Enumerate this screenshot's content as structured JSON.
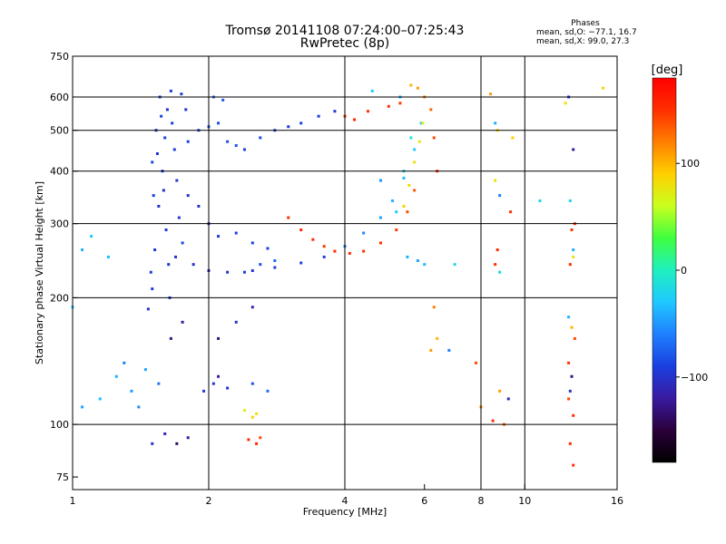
{
  "header": {
    "title_line1": "Tromsø 20141108 07:24:00–07:25:43",
    "title_line2": "RwPretec (8p)"
  },
  "phase_box": {
    "title": "Phases",
    "o_line": "mean, sd,O: −77.1, 16.7",
    "x_line": "mean, sd,X:  99.0, 27.3"
  },
  "colorbar": {
    "label": "[deg]",
    "ticks": [
      {
        "value": 100,
        "label": "100"
      },
      {
        "value": 0,
        "label": "0"
      },
      {
        "value": -100,
        "label": "−100"
      }
    ],
    "range": [
      -180,
      180
    ],
    "colormap": [
      "#000000",
      "#2a003a",
      "#3a1aa0",
      "#1a3fe0",
      "#1f7fff",
      "#1fc8ff",
      "#1ff0c0",
      "#3fff3f",
      "#c8ff1f",
      "#ffd000",
      "#ff7f00",
      "#ff2f00",
      "#ff0000"
    ]
  },
  "chart_data": {
    "type": "scatter",
    "title": "Tromsø 20141108 07:24:00–07:25:43",
    "subtitle": "RwPretec (8p)",
    "xlabel": "Frequency [MHz]",
    "ylabel": "Stationary phase Virtual Height [km]",
    "xscale": "log",
    "yscale": "log",
    "xlim": [
      1,
      16
    ],
    "ylim": [
      70,
      750
    ],
    "xticks": [
      {
        "value": 1,
        "label": "1"
      },
      {
        "value": 2,
        "label": "2"
      },
      {
        "value": 4,
        "label": "4"
      },
      {
        "value": 6,
        "label": "6"
      },
      {
        "value": 8,
        "label": "8"
      },
      {
        "value": 10,
        "label": "10"
      },
      {
        "value": 16,
        "label": "16"
      }
    ],
    "yticks": [
      {
        "value": 75,
        "label": "75"
      },
      {
        "value": 100,
        "label": "100"
      },
      {
        "value": 200,
        "label": "200"
      },
      {
        "value": 300,
        "label": "300"
      },
      {
        "value": 400,
        "label": "400"
      },
      {
        "value": 500,
        "label": "500"
      },
      {
        "value": 600,
        "label": "600"
      },
      {
        "value": 750,
        "label": "750"
      }
    ],
    "gridlines_x": [
      2,
      4,
      8,
      10
    ],
    "gridlines_y": [
      100,
      200,
      300,
      400,
      500,
      600
    ],
    "grid": true,
    "color_variable": "phase [deg]",
    "points": [
      [
        1.5,
        210,
        -90
      ],
      [
        1.52,
        260,
        -95
      ],
      [
        1.55,
        330,
        -100
      ],
      [
        1.58,
        400,
        -95
      ],
      [
        1.6,
        480,
        -90
      ],
      [
        1.62,
        560,
        -100
      ],
      [
        1.65,
        620,
        -95
      ],
      [
        1.5,
        420,
        -85
      ],
      [
        1.53,
        500,
        -100
      ],
      [
        1.56,
        600,
        -90
      ],
      [
        1.59,
        360,
        -105
      ],
      [
        1.61,
        290,
        -95
      ],
      [
        1.63,
        240,
        -100
      ],
      [
        1.66,
        520,
        -88
      ],
      [
        1.68,
        450,
        -92
      ],
      [
        1.7,
        380,
        -100
      ],
      [
        1.72,
        310,
        -95
      ],
      [
        1.75,
        270,
        -85
      ],
      [
        1.78,
        560,
        -98
      ],
      [
        1.8,
        470,
        -90
      ],
      [
        1.74,
        610,
        -93
      ],
      [
        1.47,
        188,
        -100
      ],
      [
        1.49,
        230,
        -95
      ],
      [
        1.51,
        350,
        -90
      ],
      [
        1.54,
        440,
        -100
      ],
      [
        1.57,
        540,
        -88
      ],
      [
        1.64,
        200,
        -92
      ],
      [
        1.69,
        250,
        -97
      ],
      [
        1.9,
        500,
        -85
      ],
      [
        2.0,
        510,
        -80
      ],
      [
        2.1,
        520,
        -85
      ],
      [
        2.2,
        470,
        -82
      ],
      [
        2.3,
        460,
        -80
      ],
      [
        2.05,
        600,
        -70
      ],
      [
        2.15,
        590,
        -75
      ],
      [
        2.4,
        450,
        -90
      ],
      [
        2.6,
        480,
        -85
      ],
      [
        2.8,
        500,
        -90
      ],
      [
        3.0,
        510,
        -95
      ],
      [
        3.2,
        520,
        -88
      ],
      [
        3.5,
        540,
        -92
      ],
      [
        3.8,
        555,
        -95
      ],
      [
        1.85,
        240,
        -100
      ],
      [
        2.0,
        232,
        -105
      ],
      [
        2.2,
        230,
        -100
      ],
      [
        2.5,
        232,
        -98
      ],
      [
        2.8,
        236,
        -95
      ],
      [
        3.2,
        242,
        -92
      ],
      [
        3.6,
        250,
        -90
      ],
      [
        4.0,
        265,
        -60
      ],
      [
        4.4,
        285,
        -55
      ],
      [
        4.8,
        310,
        -45
      ],
      [
        5.1,
        340,
        -40
      ],
      [
        5.4,
        385,
        -35
      ],
      [
        5.7,
        450,
        -30
      ],
      [
        5.9,
        520,
        -28
      ],
      [
        1.8,
        350,
        -100
      ],
      [
        1.9,
        330,
        -98
      ],
      [
        2.0,
        300,
        -96
      ],
      [
        2.1,
        280,
        -95
      ],
      [
        2.3,
        285,
        -92
      ],
      [
        2.5,
        270,
        -90
      ],
      [
        2.7,
        262,
        -88
      ],
      [
        3.0,
        310,
        150
      ],
      [
        3.2,
        290,
        155
      ],
      [
        3.4,
        275,
        150
      ],
      [
        3.6,
        265,
        148
      ],
      [
        3.8,
        258,
        152
      ],
      [
        4.1,
        255,
        150
      ],
      [
        4.4,
        258,
        148
      ],
      [
        4.8,
        270,
        150
      ],
      [
        5.2,
        290,
        145
      ],
      [
        5.5,
        320,
        140
      ],
      [
        5.7,
        360,
        135
      ],
      [
        4.0,
        540,
        150
      ],
      [
        4.5,
        555,
        148
      ],
      [
        5.0,
        570,
        150
      ],
      [
        5.3,
        580,
        145
      ],
      [
        4.2,
        530,
        152
      ],
      [
        5.4,
        330,
        90
      ],
      [
        5.55,
        370,
        85
      ],
      [
        5.7,
        420,
        80
      ],
      [
        5.85,
        470,
        75
      ],
      [
        5.95,
        520,
        70
      ],
      [
        5.6,
        640,
        100
      ],
      [
        5.8,
        630,
        110
      ],
      [
        6.0,
        600,
        120
      ],
      [
        6.2,
        560,
        130
      ],
      [
        6.3,
        480,
        140
      ],
      [
        6.4,
        400,
        150
      ],
      [
        5.2,
        320,
        -30
      ],
      [
        5.4,
        400,
        -20
      ],
      [
        5.6,
        480,
        -10
      ],
      [
        5.3,
        600,
        -40
      ],
      [
        4.6,
        620,
        -30
      ],
      [
        4.8,
        380,
        -50
      ],
      [
        1.05,
        260,
        -40
      ],
      [
        1.1,
        280,
        -30
      ],
      [
        1.2,
        250,
        -35
      ],
      [
        1.0,
        190,
        -30
      ],
      [
        1.05,
        110,
        -45
      ],
      [
        1.15,
        115,
        -35
      ],
      [
        1.3,
        140,
        -60
      ],
      [
        1.35,
        120,
        -50
      ],
      [
        1.25,
        130,
        -40
      ],
      [
        1.4,
        110,
        -55
      ],
      [
        1.45,
        135,
        -45
      ],
      [
        1.55,
        125,
        -65
      ],
      [
        1.6,
        95,
        -110
      ],
      [
        1.7,
        90,
        -140
      ],
      [
        1.8,
        93,
        -120
      ],
      [
        1.5,
        90,
        -100
      ],
      [
        1.65,
        160,
        -130
      ],
      [
        1.75,
        175,
        -120
      ],
      [
        1.95,
        120,
        -90
      ],
      [
        2.05,
        125,
        -95
      ],
      [
        2.1,
        130,
        -120
      ],
      [
        2.2,
        122,
        -100
      ],
      [
        2.5,
        125,
        -80
      ],
      [
        2.7,
        120,
        -70
      ],
      [
        2.4,
        108,
        70
      ],
      [
        2.5,
        104,
        90
      ],
      [
        2.55,
        106,
        80
      ],
      [
        2.45,
        92,
        150
      ],
      [
        2.55,
        90,
        155
      ],
      [
        2.6,
        93,
        140
      ],
      [
        2.5,
        190,
        -110
      ],
      [
        2.3,
        175,
        -100
      ],
      [
        2.1,
        160,
        -130
      ],
      [
        2.4,
        230,
        -90
      ],
      [
        2.6,
        240,
        -80
      ],
      [
        2.8,
        245,
        -70
      ],
      [
        6.3,
        190,
        120
      ],
      [
        6.4,
        160,
        100
      ],
      [
        6.2,
        150,
        110
      ],
      [
        7.0,
        240,
        -20
      ],
      [
        6.8,
        150,
        -60
      ],
      [
        7.8,
        140,
        140
      ],
      [
        8.0,
        110,
        120
      ],
      [
        8.5,
        102,
        150
      ],
      [
        8.8,
        120,
        110
      ],
      [
        9.0,
        100,
        130
      ],
      [
        9.2,
        115,
        -110
      ],
      [
        8.6,
        240,
        150
      ],
      [
        8.7,
        260,
        155
      ],
      [
        8.8,
        230,
        -20
      ],
      [
        8.8,
        350,
        -60
      ],
      [
        8.6,
        380,
        80
      ],
      [
        9.3,
        320,
        150
      ],
      [
        8.6,
        520,
        -40
      ],
      [
        8.7,
        500,
        90
      ],
      [
        9.4,
        480,
        90
      ],
      [
        8.4,
        610,
        110
      ],
      [
        12.5,
        600,
        -100
      ],
      [
        12.3,
        580,
        80
      ],
      [
        12.8,
        450,
        -120
      ],
      [
        12.6,
        340,
        -20
      ],
      [
        12.9,
        300,
        150
      ],
      [
        12.7,
        290,
        150
      ],
      [
        12.8,
        260,
        -40
      ],
      [
        12.8,
        250,
        80
      ],
      [
        12.6,
        240,
        150
      ],
      [
        12.5,
        180,
        -40
      ],
      [
        12.7,
        170,
        100
      ],
      [
        12.9,
        160,
        140
      ],
      [
        12.5,
        140,
        150
      ],
      [
        12.7,
        130,
        -130
      ],
      [
        12.6,
        120,
        -100
      ],
      [
        12.5,
        115,
        140
      ],
      [
        12.8,
        105,
        150
      ],
      [
        12.6,
        90,
        150
      ],
      [
        12.8,
        80,
        150
      ],
      [
        14.9,
        630,
        90
      ],
      [
        10.8,
        340,
        -20
      ],
      [
        5.5,
        250,
        -40
      ],
      [
        5.8,
        245,
        -45
      ],
      [
        6.0,
        240,
        -35
      ]
    ]
  }
}
